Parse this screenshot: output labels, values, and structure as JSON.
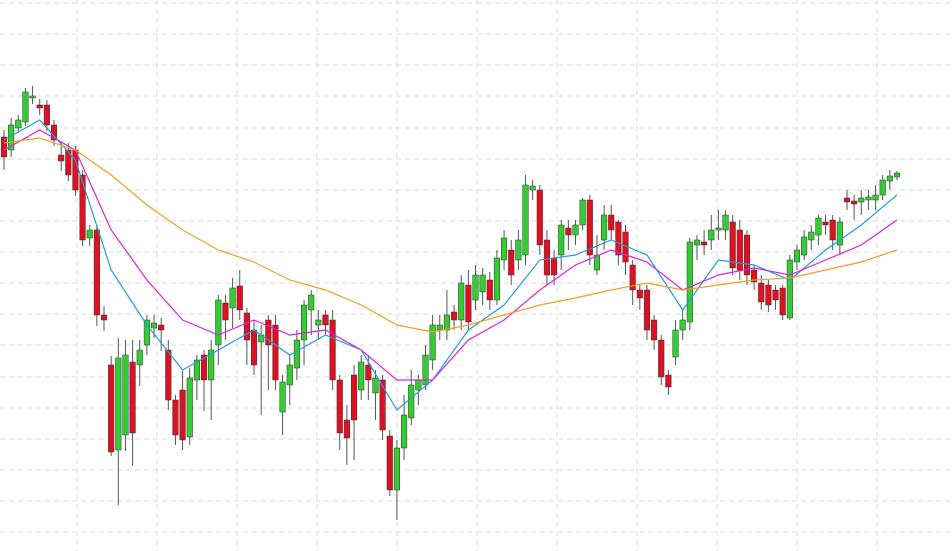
{
  "chart_data": {
    "type": "candlestick",
    "up_color": "#33cc33",
    "down_color": "#dd1122",
    "grid": true,
    "xlim": [
      -0.56,
      132.7
    ],
    "xticks": [
      10.2,
      21.4,
      32.6,
      43.8,
      55,
      66.2,
      77.4,
      88.6,
      99.8,
      111,
      122.2
    ],
    "ylim": [
      0,
      551
    ],
    "yticks": [
      19,
      50,
      81,
      112,
      143,
      174,
      206,
      237,
      268,
      299,
      330,
      361,
      392,
      423,
      455,
      486,
      517,
      548
    ],
    "open": [
      414,
      401,
      423,
      429,
      453,
      446,
      446,
      426,
      396,
      401,
      401,
      376,
      313,
      321,
      236,
      186,
      101,
      116,
      189,
      186,
      206,
      223,
      226,
      201,
      151,
      161,
      114,
      171,
      196,
      171,
      206,
      248,
      243,
      265,
      238,
      221,
      209,
      231,
      226,
      139,
      166,
      183,
      211,
      241,
      226,
      236,
      231,
      171,
      131,
      176,
      161,
      186,
      158,
      171,
      115,
      61,
      103,
      133,
      161,
      166,
      191,
      221,
      221,
      239,
      231,
      266,
      251,
      259,
      271,
      251,
      291,
      301,
      291,
      296,
      361,
      361,
      311,
      293,
      296,
      323,
      316,
      326,
      351,
      281,
      311,
      336,
      329,
      319,
      286,
      261,
      261,
      231,
      211,
      176,
      194,
      221,
      229,
      306,
      309,
      311,
      321,
      321,
      329,
      321,
      316,
      281,
      268,
      266,
      261,
      263,
      233,
      289,
      296,
      311,
      316,
      329,
      331,
      306,
      353,
      350,
      349,
      351,
      351,
      356,
      370,
      374
    ],
    "high": [
      421,
      433,
      436,
      463,
      465,
      452,
      451,
      431,
      410,
      408,
      405,
      381,
      326,
      326,
      245,
      195,
      213,
      211,
      211,
      211,
      236,
      236,
      233,
      211,
      156,
      180,
      183,
      196,
      201,
      211,
      256,
      256,
      273,
      281,
      243,
      231,
      226,
      236,
      236,
      176,
      196,
      221,
      251,
      261,
      241,
      241,
      241,
      176,
      146,
      186,
      196,
      196,
      181,
      176,
      121,
      111,
      156,
      181,
      176,
      206,
      236,
      236,
      261,
      246,
      276,
      281,
      286,
      283,
      279,
      301,
      321,
      311,
      321,
      376,
      371,
      366,
      321,
      301,
      331,
      331,
      331,
      353,
      356,
      316,
      346,
      346,
      331,
      326,
      291,
      266,
      266,
      236,
      216,
      181,
      231,
      241,
      313,
      316,
      321,
      336,
      341,
      341,
      336,
      331,
      321,
      286,
      276,
      271,
      266,
      266,
      296,
      306,
      321,
      326,
      336,
      336,
      336,
      334,
      361,
      356,
      361,
      361,
      366,
      376,
      381,
      380
    ],
    "low": [
      381,
      394,
      418,
      425,
      447,
      436,
      420,
      405,
      380,
      370,
      355,
      305,
      305,
      225,
      220,
      95,
      46,
      100,
      85,
      165,
      196,
      213,
      200,
      141,
      106,
      101,
      106,
      151,
      140,
      131,
      186,
      211,
      223,
      231,
      186,
      176,
      136,
      161,
      161,
      116,
      146,
      171,
      186,
      216,
      211,
      216,
      161,
      101,
      86,
      91,
      151,
      151,
      131,
      111,
      55,
      31,
      91,
      126,
      146,
      161,
      181,
      211,
      211,
      221,
      221,
      221,
      241,
      246,
      241,
      246,
      281,
      266,
      281,
      286,
      351,
      296,
      266,
      266,
      281,
      301,
      306,
      321,
      286,
      276,
      301,
      311,
      286,
      276,
      246,
      241,
      211,
      201,
      166,
      156,
      186,
      211,
      221,
      291,
      296,
      301,
      311,
      311,
      276,
      271,
      266,
      261,
      241,
      239,
      241,
      231,
      231,
      281,
      291,
      301,
      306,
      316,
      301,
      296,
      341,
      331,
      336,
      341,
      341,
      351,
      361,
      371
    ],
    "close": [
      394,
      426,
      431,
      459,
      455,
      443,
      426,
      411,
      390,
      376,
      361,
      311,
      321,
      236,
      231,
      99,
      193,
      196,
      118,
      201,
      231,
      228,
      221,
      151,
      116,
      111,
      173,
      191,
      171,
      201,
      251,
      231,
      263,
      241,
      211,
      186,
      216,
      206,
      171,
      169,
      186,
      211,
      246,
      256,
      231,
      226,
      171,
      118,
      113,
      131,
      189,
      171,
      173,
      121,
      61,
      103,
      136,
      166,
      171,
      196,
      226,
      226,
      236,
      231,
      268,
      229,
      276,
      276,
      251,
      293,
      313,
      276,
      311,
      366,
      365,
      306,
      276,
      276,
      326,
      316,
      326,
      351,
      296,
      296,
      336,
      321,
      296,
      289,
      261,
      253,
      221,
      211,
      174,
      164,
      221,
      231,
      309,
      311,
      306,
      321,
      323,
      336,
      283,
      281,
      276,
      269,
      249,
      246,
      251,
      236,
      291,
      301,
      314,
      319,
      333,
      326,
      311,
      329,
      349,
      347,
      353,
      354,
      356,
      371,
      375,
      378
    ],
    "series": [
      {
        "color": "#1e9fd8",
        "x": [
          0,
          5,
          10,
          15,
          20,
          25,
          30,
          35,
          40,
          45,
          50,
          55,
          60,
          65,
          70,
          75,
          80,
          85,
          90,
          95,
          100,
          105,
          110,
          115,
          120,
          125
        ],
        "values": [
          411,
          431,
          391,
          281,
          226,
          181,
          201,
          221,
          196,
          216,
          201,
          141,
          171,
          221,
          246,
          291,
          296,
          311,
          296,
          241,
          291,
          286,
          271,
          301,
          326,
          356
        ]
      },
      {
        "color": "#dd22dd",
        "x": [
          0,
          5,
          10,
          15,
          20,
          25,
          30,
          35,
          40,
          45,
          50,
          55,
          60,
          65,
          70,
          75,
          80,
          85,
          90,
          95,
          100,
          105,
          110,
          115,
          120,
          125
        ],
        "values": [
          401,
          421,
          401,
          321,
          271,
          231,
          216,
          231,
          216,
          221,
          201,
          171,
          171,
          211,
          231,
          261,
          286,
          301,
          289,
          261,
          276,
          283,
          276,
          291,
          306,
          331
        ]
      },
      {
        "color": "#f0a020",
        "x": [
          0,
          5,
          10,
          15,
          20,
          25,
          30,
          35,
          40,
          45,
          50,
          55,
          60,
          65,
          70,
          75,
          80,
          85,
          90,
          95,
          100,
          105,
          110,
          115,
          120,
          125
        ],
        "values": [
          408,
          413,
          401,
          376,
          346,
          321,
          301,
          289,
          271,
          261,
          246,
          226,
          219,
          226,
          236,
          246,
          253,
          261,
          268,
          261,
          266,
          271,
          273,
          281,
          289,
          301
        ]
      }
    ]
  }
}
